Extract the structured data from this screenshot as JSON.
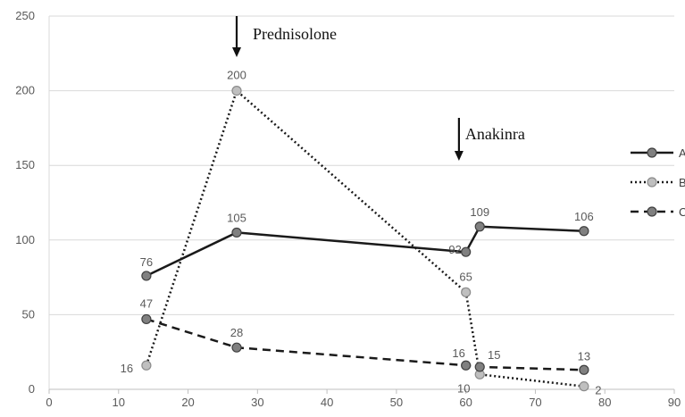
{
  "chart_data": {
    "type": "line",
    "title": "",
    "xlabel": "",
    "ylabel": "",
    "xlim": [
      0,
      90
    ],
    "ylim": [
      0,
      250
    ],
    "x_ticks": [
      0,
      10,
      20,
      30,
      40,
      50,
      60,
      70,
      80,
      90
    ],
    "y_ticks": [
      0,
      50,
      100,
      150,
      200,
      250
    ],
    "grid": "horizontal",
    "legend": {
      "placement": "right",
      "entries": [
        "A",
        "B",
        "C"
      ]
    },
    "series": [
      {
        "name": "A",
        "line_style": "solid",
        "color": "#1a1a1a",
        "marker_color": "#808080",
        "points": [
          {
            "x": 14,
            "y": 76,
            "label": "76"
          },
          {
            "x": 27,
            "y": 105,
            "label": "105"
          },
          {
            "x": 60,
            "y": 92,
            "label": "92"
          },
          {
            "x": 62,
            "y": 109,
            "label": "109"
          },
          {
            "x": 77,
            "y": 106,
            "label": "106"
          }
        ]
      },
      {
        "name": "B",
        "line_style": "dotted",
        "color": "#1a1a1a",
        "marker_color": "#bfbfbf",
        "points": [
          {
            "x": 14,
            "y": 16,
            "label": "16"
          },
          {
            "x": 27,
            "y": 200,
            "label": "200"
          },
          {
            "x": 60,
            "y": 65,
            "label": "65"
          },
          {
            "x": 62,
            "y": 10,
            "label": "10"
          },
          {
            "x": 77,
            "y": 2,
            "label": "2"
          }
        ]
      },
      {
        "name": "C",
        "line_style": "dashed",
        "color": "#1a1a1a",
        "marker_color": "#808080",
        "points": [
          {
            "x": 14,
            "y": 47,
            "label": "47"
          },
          {
            "x": 27,
            "y": 28,
            "label": "28"
          },
          {
            "x": 60,
            "y": 16,
            "label": "16"
          },
          {
            "x": 62,
            "y": 15,
            "label": "15"
          },
          {
            "x": 77,
            "y": 13,
            "label": "13"
          }
        ]
      }
    ],
    "annotations": [
      {
        "text": "Prednisolone",
        "x": 27,
        "arrow": true
      },
      {
        "text": "Anakinra",
        "x": 59,
        "arrow": true
      }
    ]
  }
}
